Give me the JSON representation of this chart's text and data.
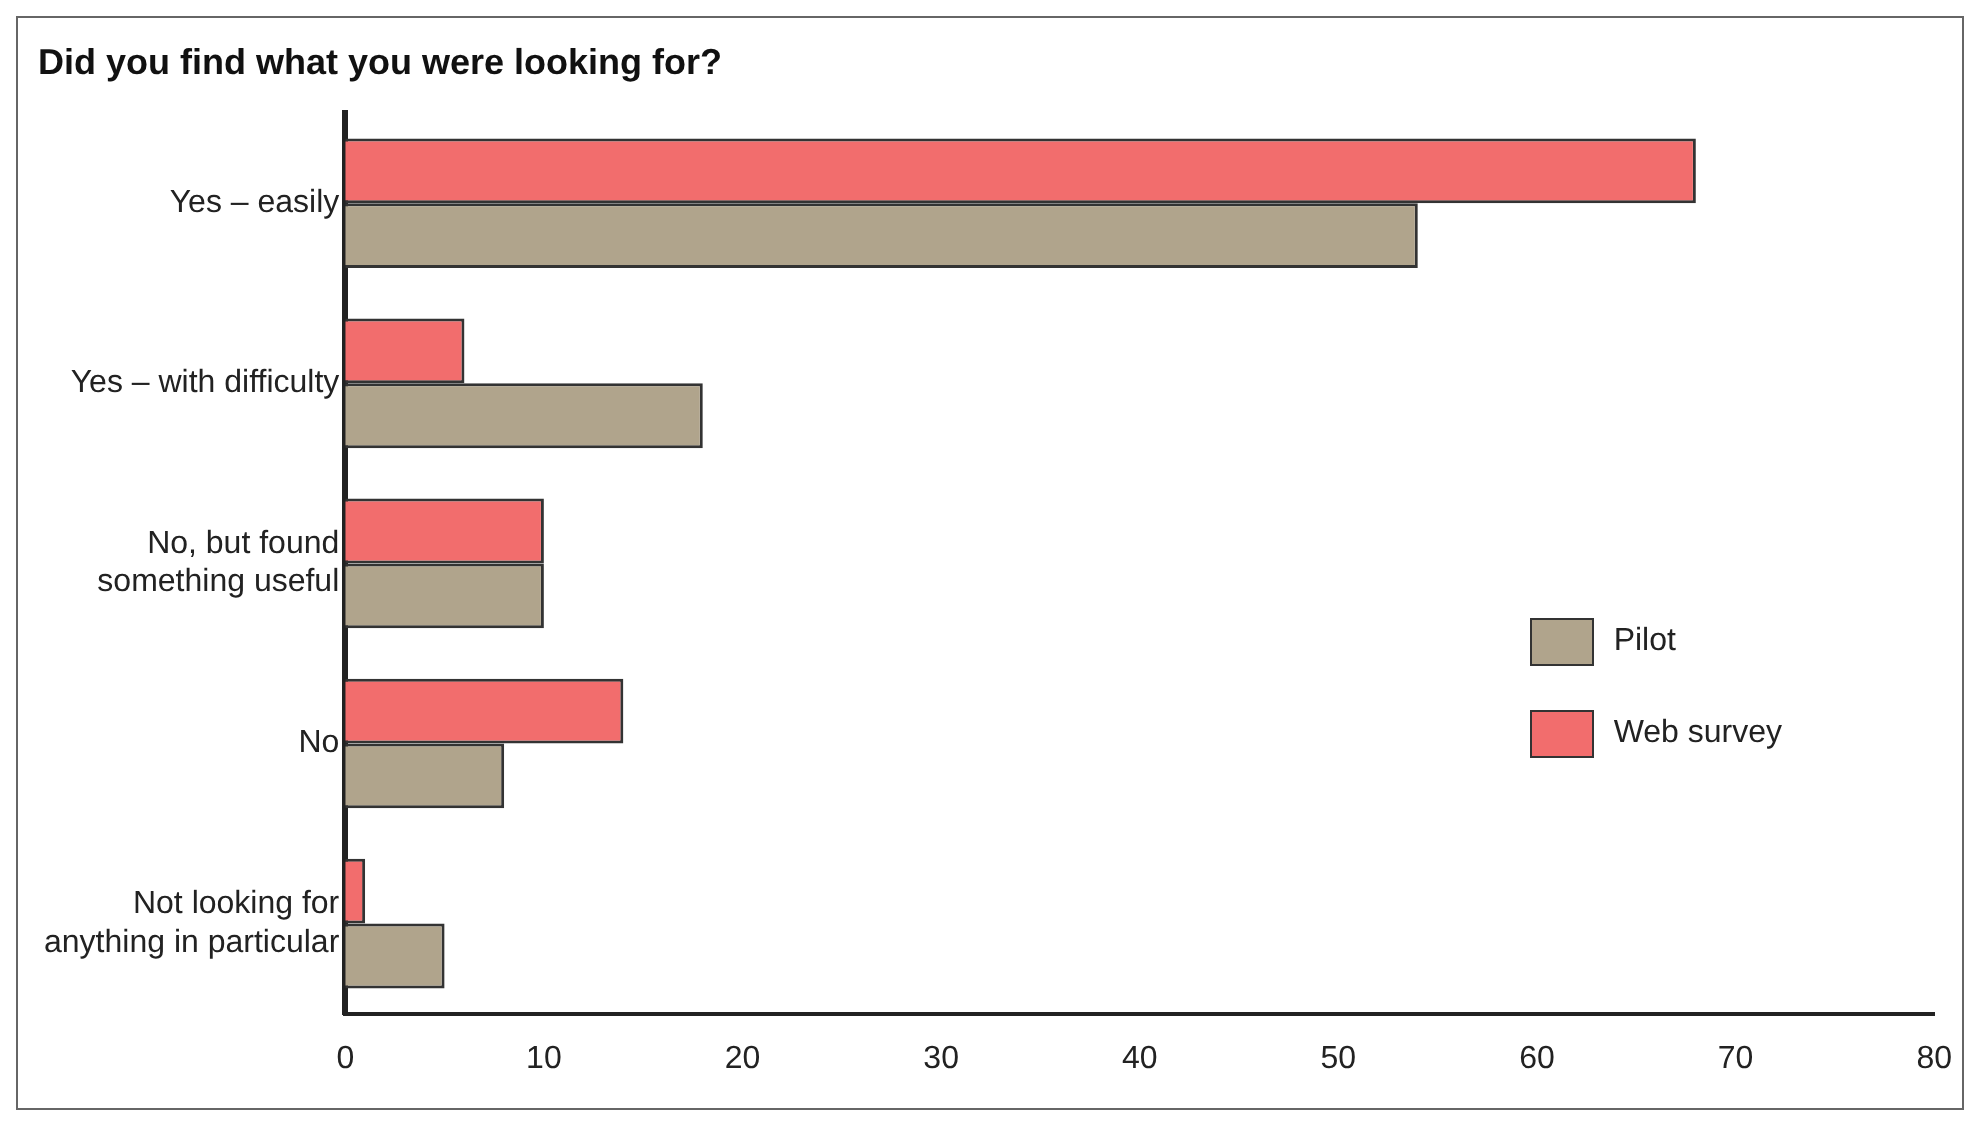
{
  "chart_data": {
    "type": "bar",
    "orientation": "horizontal",
    "title": "Did you find what you were looking for?",
    "categories": [
      "Yes – easily",
      "Yes – with difficulty",
      "No, but found something useful",
      "No",
      "Not looking for anything in particular"
    ],
    "series": [
      {
        "name": "Web survey",
        "color": "#f26d6d",
        "values": [
          68,
          6,
          10,
          14,
          1
        ]
      },
      {
        "name": "Pilot",
        "color": "#b0a48c",
        "values": [
          54,
          18,
          10,
          8,
          5
        ]
      }
    ],
    "xlim": [
      0,
      80
    ],
    "xticks": [
      0,
      10,
      20,
      30,
      40,
      50,
      60,
      70,
      80
    ],
    "grid": false,
    "legend": "right"
  }
}
